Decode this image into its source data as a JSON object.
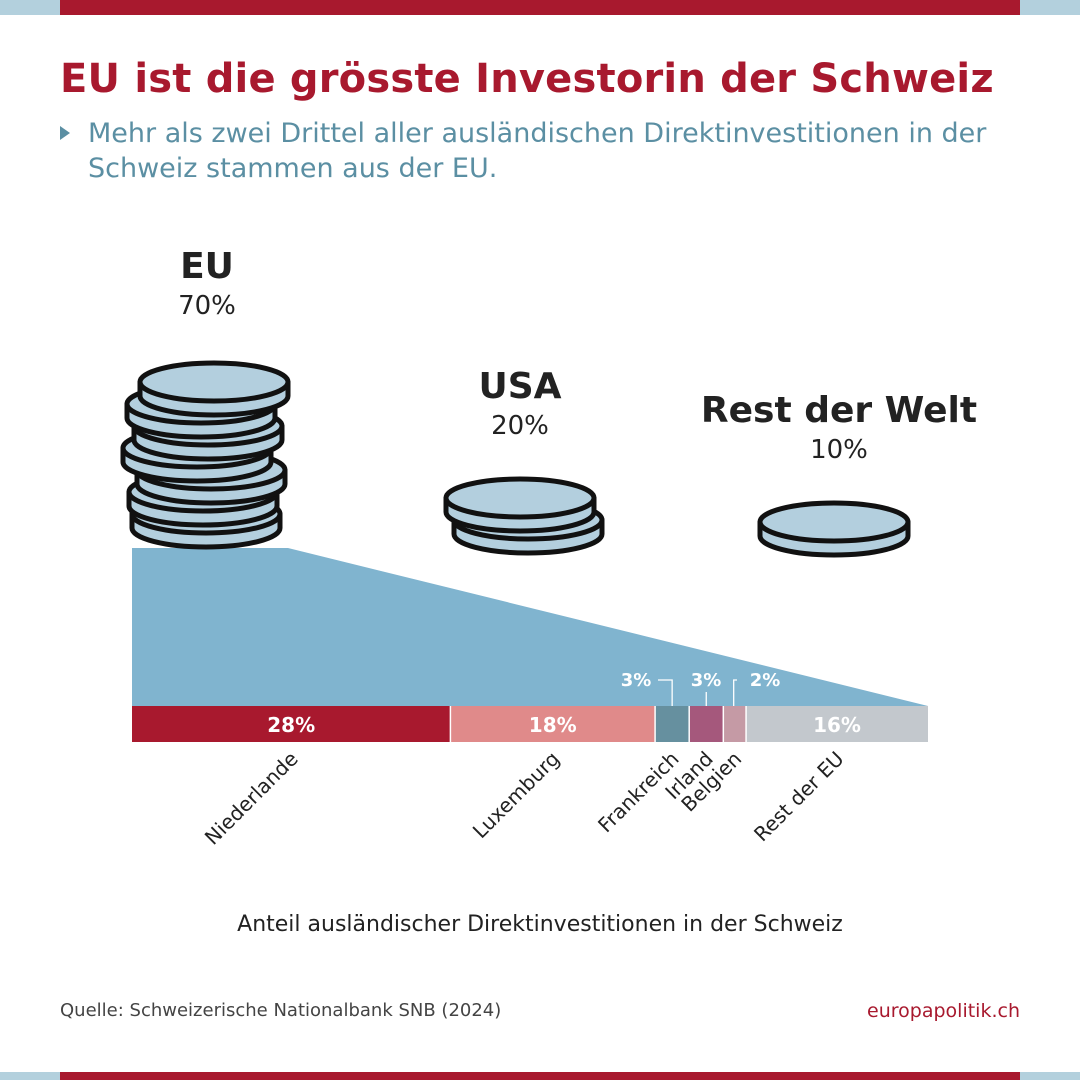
{
  "title": "EU ist die grösste Investorin der Schweiz",
  "subtitle": "Mehr als zwei Drittel aller ausländischen Direktinvestitionen in der Schweiz stammen aus der EU.",
  "footer": {
    "source": "Quelle: Schweizerische Nationalbank SNB (2024)",
    "brand": "europapolitik.ch"
  },
  "colors": {
    "brand_red": "#a8192e",
    "edge_blue": "#b3d0dd",
    "subtitle_teal": "#5b8fa3",
    "wedge_blue": "#80b4cf",
    "coin_face": "#b3cfde",
    "coin_outline": "#111111",
    "label_grey": "#222222"
  },
  "chart_data": {
    "type": "bar",
    "title": "EU ist die grösste Investorin der Schweiz",
    "xlabel": "Anteil ausländischer Direktinvestitionen in der Schweiz",
    "ylabel": "",
    "groups": [
      {
        "name": "EU",
        "value": 70,
        "label": "70%",
        "coins": 7
      },
      {
        "name": "USA",
        "value": 20,
        "label": "20%",
        "coins": 2
      },
      {
        "name": "Rest der Welt",
        "value": 10,
        "label": "10%",
        "coins": 1
      }
    ],
    "eu_breakdown": {
      "unit": "%",
      "segments": [
        {
          "name": "Niederlande",
          "value": 28,
          "label": "28%",
          "color": "#a8192e",
          "label_position": "inside"
        },
        {
          "name": "Luxemburg",
          "value": 18,
          "label": "18%",
          "color": "#e08a8a",
          "label_position": "inside"
        },
        {
          "name": "Frankreich",
          "value": 3,
          "label": "3%",
          "color": "#66909f",
          "label_position": "above"
        },
        {
          "name": "Irland",
          "value": 3,
          "label": "3%",
          "color": "#a5587c",
          "label_position": "above"
        },
        {
          "name": "Belgien",
          "value": 2,
          "label": "2%",
          "color": "#c59aa5",
          "label_position": "above"
        },
        {
          "name": "Rest der EU",
          "value": 16,
          "label": "16%",
          "color": "#c3c8cd",
          "label_position": "inside"
        }
      ]
    }
  }
}
